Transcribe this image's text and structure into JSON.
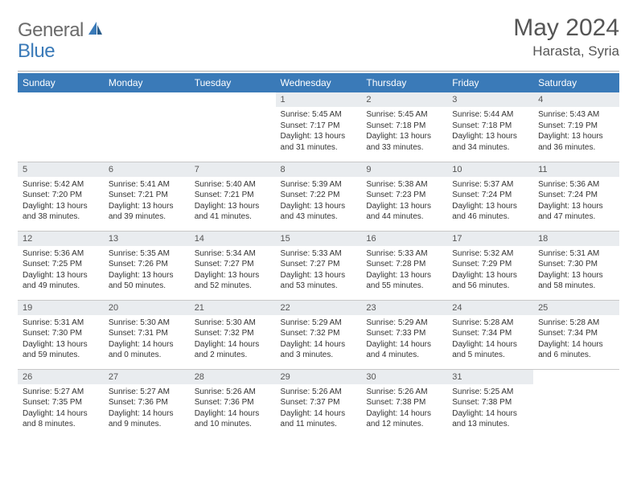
{
  "brand": {
    "general": "General",
    "blue": "Blue"
  },
  "title": "May 2024",
  "location": "Harasta, Syria",
  "header_bg": "#3a7ab8",
  "grid_line": "#c8c8c8",
  "daynum_bg": "#e9ecef",
  "weekdays": [
    "Sunday",
    "Monday",
    "Tuesday",
    "Wednesday",
    "Thursday",
    "Friday",
    "Saturday"
  ],
  "weeks": [
    [
      null,
      null,
      null,
      {
        "d": "1",
        "sr": "5:45 AM",
        "ss": "7:17 PM",
        "dl": "13 hours and 31 minutes."
      },
      {
        "d": "2",
        "sr": "5:45 AM",
        "ss": "7:18 PM",
        "dl": "13 hours and 33 minutes."
      },
      {
        "d": "3",
        "sr": "5:44 AM",
        "ss": "7:18 PM",
        "dl": "13 hours and 34 minutes."
      },
      {
        "d": "4",
        "sr": "5:43 AM",
        "ss": "7:19 PM",
        "dl": "13 hours and 36 minutes."
      }
    ],
    [
      {
        "d": "5",
        "sr": "5:42 AM",
        "ss": "7:20 PM",
        "dl": "13 hours and 38 minutes."
      },
      {
        "d": "6",
        "sr": "5:41 AM",
        "ss": "7:21 PM",
        "dl": "13 hours and 39 minutes."
      },
      {
        "d": "7",
        "sr": "5:40 AM",
        "ss": "7:21 PM",
        "dl": "13 hours and 41 minutes."
      },
      {
        "d": "8",
        "sr": "5:39 AM",
        "ss": "7:22 PM",
        "dl": "13 hours and 43 minutes."
      },
      {
        "d": "9",
        "sr": "5:38 AM",
        "ss": "7:23 PM",
        "dl": "13 hours and 44 minutes."
      },
      {
        "d": "10",
        "sr": "5:37 AM",
        "ss": "7:24 PM",
        "dl": "13 hours and 46 minutes."
      },
      {
        "d": "11",
        "sr": "5:36 AM",
        "ss": "7:24 PM",
        "dl": "13 hours and 47 minutes."
      }
    ],
    [
      {
        "d": "12",
        "sr": "5:36 AM",
        "ss": "7:25 PM",
        "dl": "13 hours and 49 minutes."
      },
      {
        "d": "13",
        "sr": "5:35 AM",
        "ss": "7:26 PM",
        "dl": "13 hours and 50 minutes."
      },
      {
        "d": "14",
        "sr": "5:34 AM",
        "ss": "7:27 PM",
        "dl": "13 hours and 52 minutes."
      },
      {
        "d": "15",
        "sr": "5:33 AM",
        "ss": "7:27 PM",
        "dl": "13 hours and 53 minutes."
      },
      {
        "d": "16",
        "sr": "5:33 AM",
        "ss": "7:28 PM",
        "dl": "13 hours and 55 minutes."
      },
      {
        "d": "17",
        "sr": "5:32 AM",
        "ss": "7:29 PM",
        "dl": "13 hours and 56 minutes."
      },
      {
        "d": "18",
        "sr": "5:31 AM",
        "ss": "7:30 PM",
        "dl": "13 hours and 58 minutes."
      }
    ],
    [
      {
        "d": "19",
        "sr": "5:31 AM",
        "ss": "7:30 PM",
        "dl": "13 hours and 59 minutes."
      },
      {
        "d": "20",
        "sr": "5:30 AM",
        "ss": "7:31 PM",
        "dl": "14 hours and 0 minutes."
      },
      {
        "d": "21",
        "sr": "5:30 AM",
        "ss": "7:32 PM",
        "dl": "14 hours and 2 minutes."
      },
      {
        "d": "22",
        "sr": "5:29 AM",
        "ss": "7:32 PM",
        "dl": "14 hours and 3 minutes."
      },
      {
        "d": "23",
        "sr": "5:29 AM",
        "ss": "7:33 PM",
        "dl": "14 hours and 4 minutes."
      },
      {
        "d": "24",
        "sr": "5:28 AM",
        "ss": "7:34 PM",
        "dl": "14 hours and 5 minutes."
      },
      {
        "d": "25",
        "sr": "5:28 AM",
        "ss": "7:34 PM",
        "dl": "14 hours and 6 minutes."
      }
    ],
    [
      {
        "d": "26",
        "sr": "5:27 AM",
        "ss": "7:35 PM",
        "dl": "14 hours and 8 minutes."
      },
      {
        "d": "27",
        "sr": "5:27 AM",
        "ss": "7:36 PM",
        "dl": "14 hours and 9 minutes."
      },
      {
        "d": "28",
        "sr": "5:26 AM",
        "ss": "7:36 PM",
        "dl": "14 hours and 10 minutes."
      },
      {
        "d": "29",
        "sr": "5:26 AM",
        "ss": "7:37 PM",
        "dl": "14 hours and 11 minutes."
      },
      {
        "d": "30",
        "sr": "5:26 AM",
        "ss": "7:38 PM",
        "dl": "14 hours and 12 minutes."
      },
      {
        "d": "31",
        "sr": "5:25 AM",
        "ss": "7:38 PM",
        "dl": "14 hours and 13 minutes."
      },
      null
    ]
  ],
  "labels": {
    "sunrise": "Sunrise: ",
    "sunset": "Sunset: ",
    "daylight": "Daylight: "
  }
}
